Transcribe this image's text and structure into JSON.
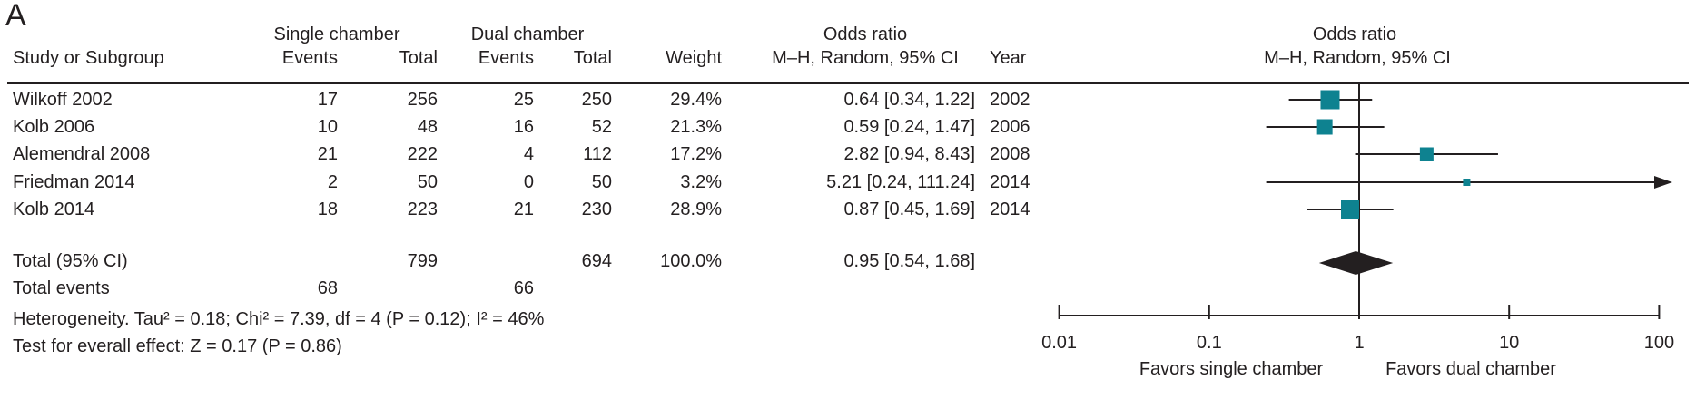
{
  "panel_label": "A",
  "colors": {
    "ink": "#231f20",
    "marker": "#0e8290",
    "diamond": "#231f20"
  },
  "headers": {
    "group_single": "Single chamber",
    "group_dual": "Dual chamber",
    "odds_ratio": "Odds ratio",
    "study": "Study or Subgroup",
    "events": "Events",
    "total": "Total",
    "weight": "Weight",
    "mh_random": "M–H, Random, 95% CI",
    "year": "Year"
  },
  "table": {
    "rows": [
      {
        "study": "Wilkoff 2002",
        "e1": "17",
        "t1": "256",
        "e2": "25",
        "t2": "250",
        "weight": "29.4%",
        "or_ci": "0.64 [0.34, 1.22]",
        "year": "2002"
      },
      {
        "study": "Kolb 2006",
        "e1": "10",
        "t1": "48",
        "e2": "16",
        "t2": "52",
        "weight": "21.3%",
        "or_ci": "0.59 [0.24, 1.47]",
        "year": "2006"
      },
      {
        "study": "Alemendral 2008",
        "e1": "21",
        "t1": "222",
        "e2": "4",
        "t2": "112",
        "weight": "17.2%",
        "or_ci": "2.82 [0.94, 8.43]",
        "year": "2008"
      },
      {
        "study": "Friedman 2014",
        "e1": "2",
        "t1": "50",
        "e2": "0",
        "t2": "50",
        "weight": "3.2%",
        "or_ci": "5.21 [0.24, 111.24]",
        "year": "2014"
      },
      {
        "study": "Kolb 2014",
        "e1": "18",
        "t1": "223",
        "e2": "21",
        "t2": "230",
        "weight": "28.9%",
        "or_ci": "0.87 [0.45, 1.69]",
        "year": "2014"
      }
    ],
    "total_row": {
      "label": "Total (95% CI)",
      "t1": "799",
      "t2": "694",
      "weight": "100.0%",
      "or_ci": "0.95 [0.54, 1.68]"
    },
    "total_events": {
      "label": "Total events",
      "e1": "68",
      "e2": "66"
    },
    "heterogeneity": "Heterogeneity. Tau² = 0.18; Chi² = 7.39, df = 4 (P = 0.12); I² = 46%",
    "overall_test": "Test for everall effect: Z = 0.17 (P = 0.86)"
  },
  "chart_data": {
    "type": "forest",
    "x_scale": "log10",
    "x_min": 0.01,
    "x_max": 100,
    "x_ticks": [
      0.01,
      0.1,
      1,
      10,
      100
    ],
    "x_axis_labels": [
      "0.01",
      "0.1",
      "1",
      "10",
      "100"
    ],
    "favors_left": "Favors single chamber",
    "favors_right": "Favors dual chamber",
    "effect_label": "Odds ratio",
    "method_label": "M–H, Random, 95% CI",
    "studies": [
      {
        "name": "Wilkoff 2002",
        "or": 0.64,
        "ci_low": 0.34,
        "ci_high": 1.22,
        "weight": 29.4,
        "year": "2002"
      },
      {
        "name": "Kolb 2006",
        "or": 0.59,
        "ci_low": 0.24,
        "ci_high": 1.47,
        "weight": 21.3,
        "year": "2006"
      },
      {
        "name": "Alemendral 2008",
        "or": 2.82,
        "ci_low": 0.94,
        "ci_high": 8.43,
        "weight": 17.2,
        "year": "2008"
      },
      {
        "name": "Friedman 2014",
        "or": 5.21,
        "ci_low": 0.24,
        "ci_high": 111.24,
        "weight": 3.2,
        "year": "2014"
      },
      {
        "name": "Kolb 2014",
        "or": 0.87,
        "ci_low": 0.45,
        "ci_high": 1.69,
        "weight": 28.9,
        "year": "2014"
      }
    ],
    "total": {
      "or": 0.95,
      "ci_low": 0.54,
      "ci_high": 1.68
    }
  }
}
